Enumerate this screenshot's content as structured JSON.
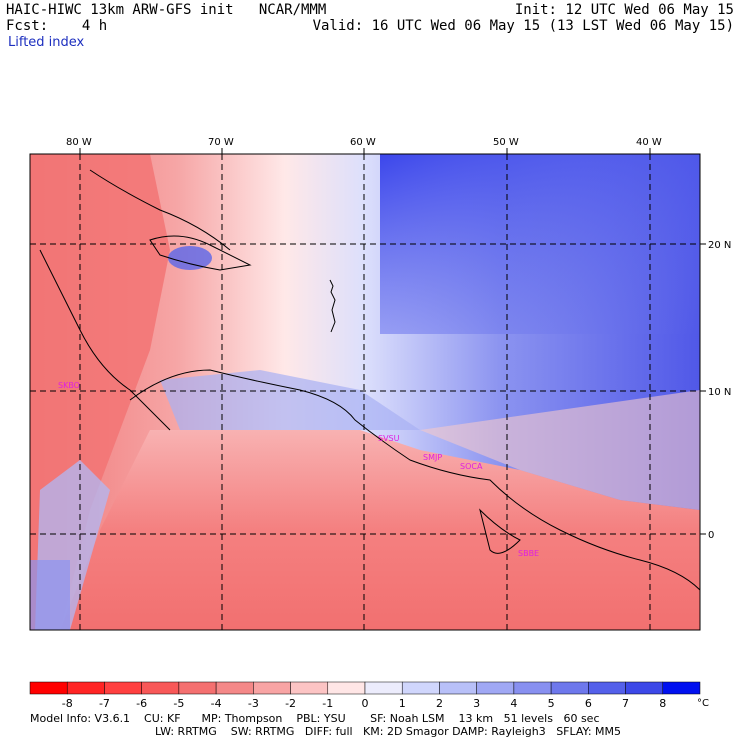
{
  "header": {
    "title": "HAIC-HIWC 13km ARW-GFS init   NCAR/MMM",
    "forecast": "Fcst:    4 h",
    "variable": "Lifted index",
    "init": "Init: 12 UTC Wed 06 May 15",
    "valid": "Valid: 16 UTC Wed 06 May 15 (13 LST Wed 06 May 15)"
  },
  "map": {
    "lon_labels": [
      "80 W",
      "70 W",
      "60 W",
      "50 W",
      "40 W"
    ],
    "lat_labels": [
      "20 N",
      "10 N",
      "0"
    ],
    "stations": [
      "SKBO",
      "SVSU",
      "SMJP",
      "SOCA",
      "SBBE"
    ],
    "station_color": "#e020e0"
  },
  "colorbar": {
    "ticks": [
      "-8",
      "-7",
      "-6",
      "-5",
      "-4",
      "-3",
      "-2",
      "-1",
      "0",
      "1",
      "2",
      "3",
      "4",
      "5",
      "6",
      "7",
      "8"
    ],
    "unit": "°C",
    "colors": [
      "#ff0000",
      "#ff2424",
      "#ff4040",
      "#f85858",
      "#f47070",
      "#f48888",
      "#f8a4a4",
      "#fcc4c4",
      "#ffe6e6",
      "#ececfc",
      "#d0d6fc",
      "#b8c0f8",
      "#a0a8f4",
      "#8890f0",
      "#6e78ec",
      "#5460ea",
      "#3c48e8",
      "#0010f0"
    ]
  },
  "model_info": {
    "line1": "Model Info: V3.6.1    CU: KF      MP: Thompson    PBL: YSU       SF: Noah LSM    13 km   51 levels   60 sec",
    "line2": "LW: RRTMG    SW: RRTMG   DIFF: full   KM: 2D Smagor DAMP: Rayleigh3   SFLAY: MM5"
  }
}
